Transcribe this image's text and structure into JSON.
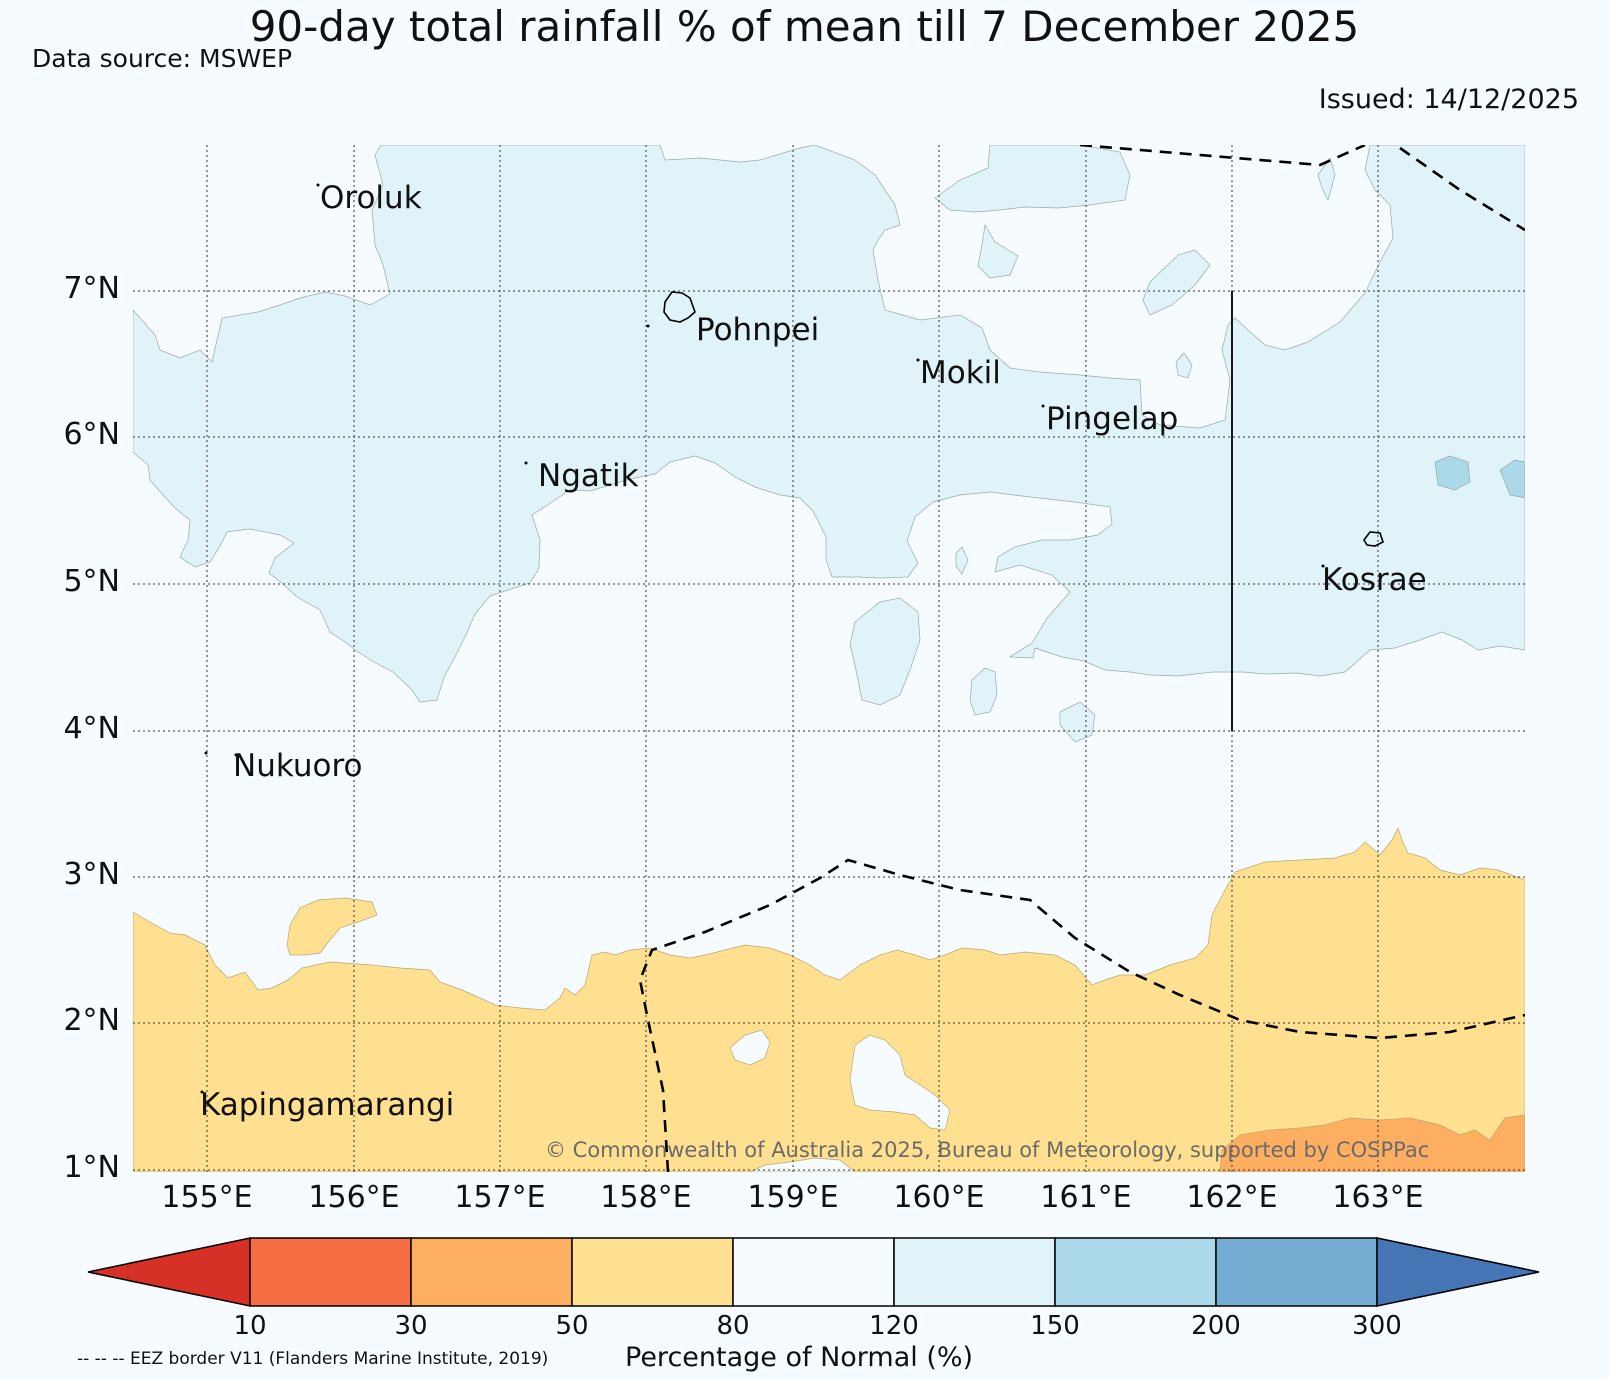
{
  "header": {
    "title": "90-day total rainfall % of mean till 7 December 2025",
    "source": "Data source: MSWEP",
    "issued": "Issued: 14/12/2025"
  },
  "axes": {
    "lat_labels": [
      "7°N",
      "6°N",
      "5°N",
      "4°N",
      "3°N",
      "2°N",
      "1°N"
    ],
    "lon_labels": [
      "155°E",
      "156°E",
      "157°E",
      "158°E",
      "159°E",
      "160°E",
      "161°E",
      "162°E",
      "163°E"
    ]
  },
  "places": {
    "oroluk": "Oroluk",
    "pohnpei": "Pohnpei",
    "mokil": "Mokil",
    "pingelap": "Pingelap",
    "ngatik": "Ngatik",
    "kosrae": "Kosrae",
    "nukuoro": "Nukuoro",
    "kapingamarangi": "Kapingamarangi"
  },
  "copyright": "© Commonwealth of Australia 2025, Bureau of Meteorology, supported by COSPPac",
  "colorbar": {
    "title": "Percentage of Normal (%)",
    "ticks": [
      "10",
      "30",
      "50",
      "80",
      "120",
      "150",
      "200",
      "300"
    ],
    "colors": {
      "lt10": "#d73027",
      "c10_30": "#f46d43",
      "c30_50": "#fdae61",
      "c50_80": "#fee090",
      "c80_120": "#f5fbfe",
      "c120_150": "#e0f3f8",
      "c150_200": "#abd9e9",
      "c200_300": "#74add1",
      "gt300": "#4575b4"
    }
  },
  "legend": {
    "eez_note": "-- -- -- EEZ border V11 (Flanders Marine Institute, 2019)"
  }
}
